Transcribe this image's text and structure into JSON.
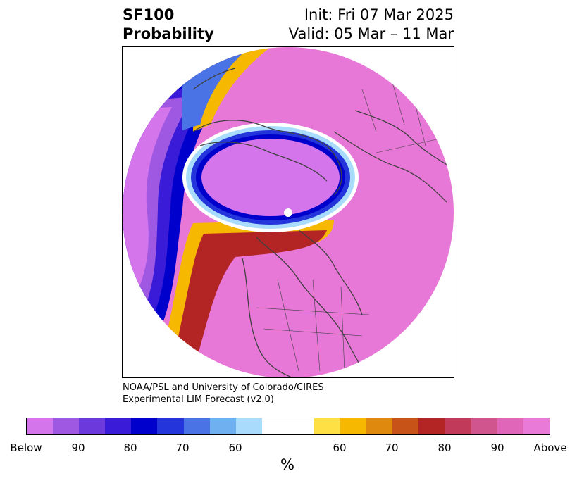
{
  "title": {
    "left_line1": "SF100",
    "left_line2": "Probability",
    "right_line1": "Init: Fri 07 Mar 2025",
    "right_line2": "Valid: 05 Mar – 11 Mar"
  },
  "credit": {
    "line1": "NOAA/PSL and University of Colorado/CIRES",
    "line2": "Experimental LIM Forecast (v2.0)"
  },
  "colorbar": {
    "colors": [
      "#d575ec",
      "#9e58e1",
      "#6c39dc",
      "#3a1bd7",
      "#0000cd",
      "#2435db",
      "#4a73e6",
      "#6fb0f1",
      "#a9dcfc",
      "#ffffff",
      "#fee044",
      "#f6b800",
      "#e0890f",
      "#c75319",
      "#b32424",
      "#c23a5a",
      "#d0548d",
      "#df66b8",
      "#e97ad8"
    ],
    "tick_labels": [
      "Below",
      "90",
      "80",
      "70",
      "60",
      "60",
      "70",
      "80",
      "90",
      "Above"
    ],
    "unit": "%"
  },
  "map": {
    "background_color": "#e878d8",
    "below_color": "#d575ec",
    "coastline_color": "#404040"
  }
}
